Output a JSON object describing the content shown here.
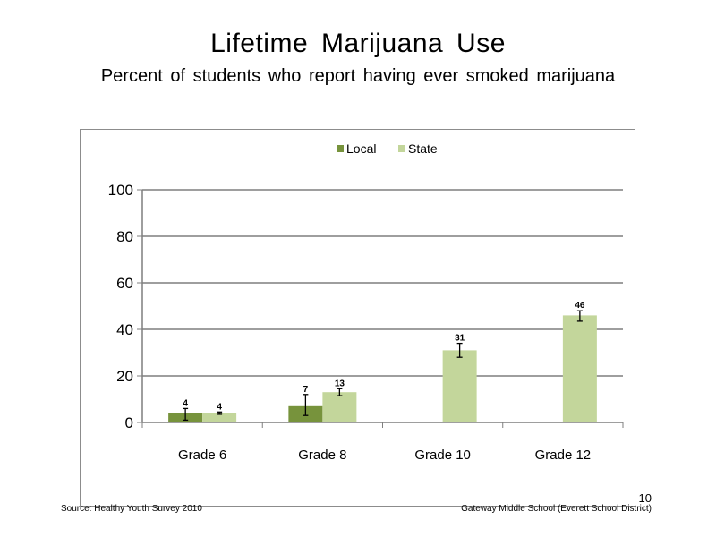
{
  "slide": {
    "title": "Lifetime  Marijuana  Use",
    "subtitle": "Percent  of students  who report having  ever smoked  marijuana",
    "source": "Source: Healthy  Youth Survey 2010",
    "school": "Gateway Middle  School  (Everett School District)",
    "page_number": "10"
  },
  "chart_data": {
    "type": "bar",
    "categories": [
      "Grade 6",
      "Grade 8",
      "Grade 10",
      "Grade 12"
    ],
    "series": [
      {
        "name": "Local",
        "color": "#77933c",
        "values": [
          4,
          7,
          null,
          null
        ],
        "labels": [
          "4",
          "7",
          "",
          ""
        ],
        "error": [
          [
            1,
            6
          ],
          [
            3,
            12
          ],
          null,
          null
        ]
      },
      {
        "name": "State",
        "color": "#c3d69b",
        "values": [
          4,
          13,
          31,
          46
        ],
        "labels": [
          "4",
          "13",
          "31",
          "46"
        ],
        "error": [
          [
            3.5,
            4.5
          ],
          [
            11.5,
            14.5
          ],
          [
            28,
            34
          ],
          [
            43.5,
            48
          ]
        ]
      }
    ],
    "ylim": [
      0,
      100
    ],
    "yticks": [
      "0",
      "20",
      "40",
      "60",
      "80",
      "100"
    ],
    "ytick_values": [
      0,
      20,
      40,
      60,
      80,
      100
    ],
    "grid": true,
    "legend": "top-center"
  }
}
